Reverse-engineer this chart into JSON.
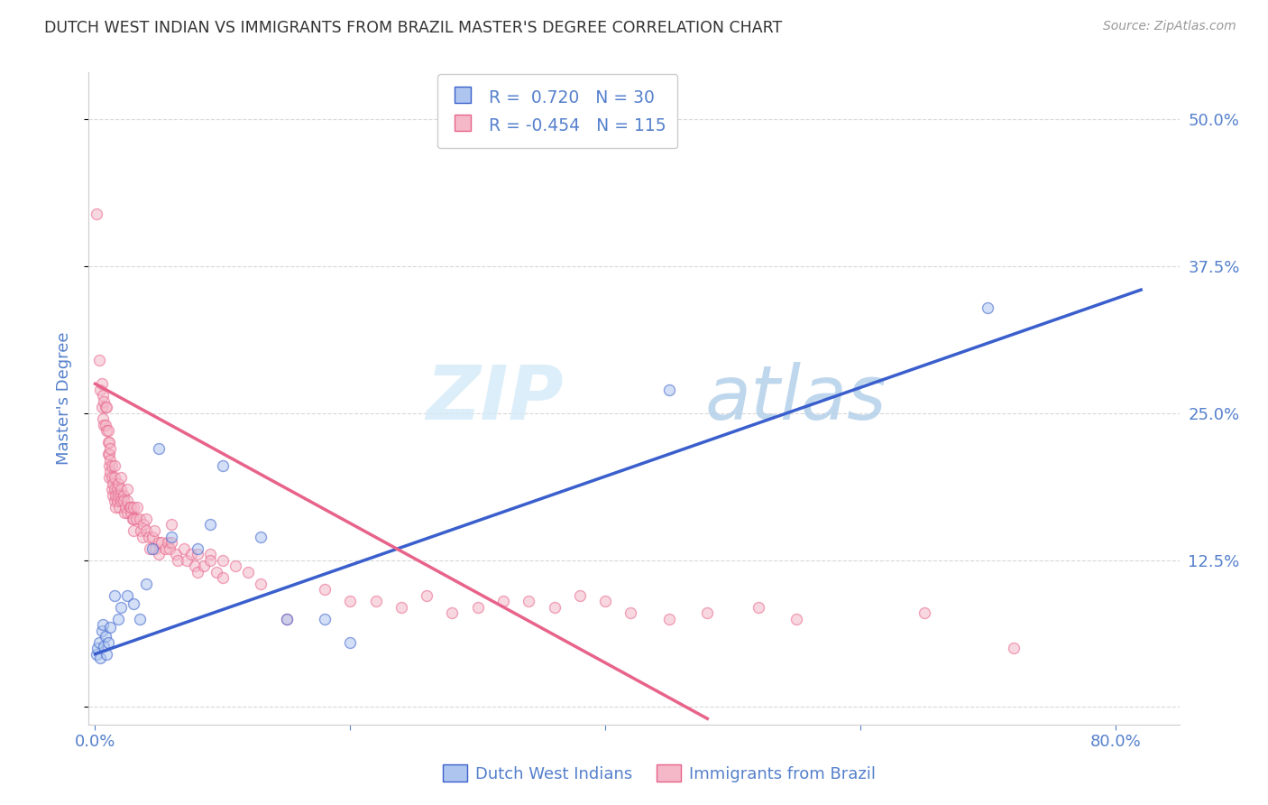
{
  "title": "DUTCH WEST INDIAN VS IMMIGRANTS FROM BRAZIL MASTER'S DEGREE CORRELATION CHART",
  "source": "Source: ZipAtlas.com",
  "ylabel_label": "Master's Degree",
  "x_ticks": [
    0.0,
    20.0,
    40.0,
    60.0,
    80.0
  ],
  "x_tick_labels": [
    "0.0%",
    "",
    "",
    "",
    "80.0%"
  ],
  "y_ticks": [
    0.0,
    12.5,
    25.0,
    37.5,
    50.0
  ],
  "y_tick_labels": [
    "",
    "12.5%",
    "25.0%",
    "37.5%",
    "50.0%"
  ],
  "xlim": [
    -0.5,
    85.0
  ],
  "ylim": [
    -1.5,
    54.0
  ],
  "blue_color": "#aec6ef",
  "pink_color": "#f4b8c8",
  "blue_line_color": "#3a5fcd",
  "pink_line_color": "#e8638a",
  "R_blue": 0.72,
  "N_blue": 30,
  "R_pink": -0.454,
  "N_pink": 115,
  "legend_label_blue": "Dutch West Indians",
  "legend_label_pink": "Immigrants from Brazil",
  "watermark_zip": "ZIP",
  "watermark_atlas": "atlas",
  "blue_points": [
    [
      0.1,
      4.5
    ],
    [
      0.2,
      5.0
    ],
    [
      0.3,
      5.5
    ],
    [
      0.4,
      4.2
    ],
    [
      0.5,
      6.5
    ],
    [
      0.6,
      7.0
    ],
    [
      0.7,
      5.2
    ],
    [
      0.8,
      6.0
    ],
    [
      0.9,
      4.5
    ],
    [
      1.0,
      5.5
    ],
    [
      1.2,
      6.8
    ],
    [
      1.5,
      9.5
    ],
    [
      1.8,
      7.5
    ],
    [
      2.0,
      8.5
    ],
    [
      2.5,
      9.5
    ],
    [
      3.0,
      8.8
    ],
    [
      3.5,
      7.5
    ],
    [
      4.0,
      10.5
    ],
    [
      4.5,
      13.5
    ],
    [
      5.0,
      22.0
    ],
    [
      6.0,
      14.5
    ],
    [
      8.0,
      13.5
    ],
    [
      9.0,
      15.5
    ],
    [
      10.0,
      20.5
    ],
    [
      13.0,
      14.5
    ],
    [
      15.0,
      7.5
    ],
    [
      18.0,
      7.5
    ],
    [
      20.0,
      5.5
    ],
    [
      45.0,
      27.0
    ],
    [
      70.0,
      34.0
    ]
  ],
  "pink_points": [
    [
      0.1,
      42.0
    ],
    [
      0.3,
      29.5
    ],
    [
      0.4,
      27.0
    ],
    [
      0.5,
      27.5
    ],
    [
      0.5,
      25.5
    ],
    [
      0.6,
      24.5
    ],
    [
      0.6,
      26.5
    ],
    [
      0.7,
      24.0
    ],
    [
      0.7,
      26.0
    ],
    [
      0.8,
      25.5
    ],
    [
      0.8,
      24.0
    ],
    [
      0.9,
      23.5
    ],
    [
      0.9,
      25.5
    ],
    [
      1.0,
      23.5
    ],
    [
      1.0,
      22.5
    ],
    [
      1.0,
      21.5
    ],
    [
      1.1,
      22.5
    ],
    [
      1.1,
      21.5
    ],
    [
      1.1,
      20.5
    ],
    [
      1.1,
      19.5
    ],
    [
      1.2,
      22.0
    ],
    [
      1.2,
      21.0
    ],
    [
      1.2,
      20.0
    ],
    [
      1.3,
      19.5
    ],
    [
      1.3,
      20.5
    ],
    [
      1.3,
      18.5
    ],
    [
      1.4,
      19.0
    ],
    [
      1.4,
      18.0
    ],
    [
      1.5,
      20.5
    ],
    [
      1.5,
      19.5
    ],
    [
      1.5,
      18.5
    ],
    [
      1.5,
      17.5
    ],
    [
      1.6,
      18.0
    ],
    [
      1.6,
      17.0
    ],
    [
      1.7,
      18.5
    ],
    [
      1.7,
      17.5
    ],
    [
      1.8,
      19.0
    ],
    [
      1.8,
      18.0
    ],
    [
      1.9,
      17.0
    ],
    [
      2.0,
      18.0
    ],
    [
      2.0,
      19.5
    ],
    [
      2.0,
      18.5
    ],
    [
      2.0,
      17.5
    ],
    [
      2.2,
      18.0
    ],
    [
      2.2,
      17.5
    ],
    [
      2.3,
      16.5
    ],
    [
      2.4,
      17.0
    ],
    [
      2.5,
      18.5
    ],
    [
      2.5,
      17.5
    ],
    [
      2.5,
      16.5
    ],
    [
      2.7,
      17.0
    ],
    [
      2.8,
      16.5
    ],
    [
      2.8,
      17.0
    ],
    [
      2.9,
      16.0
    ],
    [
      3.0,
      17.0
    ],
    [
      3.0,
      16.0
    ],
    [
      3.0,
      15.0
    ],
    [
      3.2,
      16.0
    ],
    [
      3.3,
      17.0
    ],
    [
      3.5,
      16.0
    ],
    [
      3.6,
      15.0
    ],
    [
      3.7,
      14.5
    ],
    [
      3.8,
      15.5
    ],
    [
      4.0,
      16.0
    ],
    [
      4.0,
      15.0
    ],
    [
      4.2,
      14.5
    ],
    [
      4.3,
      13.5
    ],
    [
      4.5,
      14.5
    ],
    [
      4.6,
      15.0
    ],
    [
      4.7,
      13.5
    ],
    [
      5.0,
      14.0
    ],
    [
      5.0,
      13.0
    ],
    [
      5.2,
      14.0
    ],
    [
      5.5,
      13.5
    ],
    [
      5.7,
      14.0
    ],
    [
      5.8,
      13.5
    ],
    [
      6.0,
      15.5
    ],
    [
      6.0,
      14.0
    ],
    [
      6.3,
      13.0
    ],
    [
      6.5,
      12.5
    ],
    [
      7.0,
      13.5
    ],
    [
      7.2,
      12.5
    ],
    [
      7.5,
      13.0
    ],
    [
      7.8,
      12.0
    ],
    [
      8.0,
      13.0
    ],
    [
      8.0,
      11.5
    ],
    [
      8.5,
      12.0
    ],
    [
      9.0,
      13.0
    ],
    [
      9.0,
      12.5
    ],
    [
      9.5,
      11.5
    ],
    [
      10.0,
      12.5
    ],
    [
      10.0,
      11.0
    ],
    [
      11.0,
      12.0
    ],
    [
      12.0,
      11.5
    ],
    [
      13.0,
      10.5
    ],
    [
      15.0,
      7.5
    ],
    [
      18.0,
      10.0
    ],
    [
      20.0,
      9.0
    ],
    [
      22.0,
      9.0
    ],
    [
      24.0,
      8.5
    ],
    [
      26.0,
      9.5
    ],
    [
      28.0,
      8.0
    ],
    [
      30.0,
      8.5
    ],
    [
      32.0,
      9.0
    ],
    [
      34.0,
      9.0
    ],
    [
      36.0,
      8.5
    ],
    [
      38.0,
      9.5
    ],
    [
      40.0,
      9.0
    ],
    [
      42.0,
      8.0
    ],
    [
      45.0,
      7.5
    ],
    [
      48.0,
      8.0
    ],
    [
      52.0,
      8.5
    ],
    [
      55.0,
      7.5
    ],
    [
      65.0,
      8.0
    ],
    [
      72.0,
      5.0
    ]
  ],
  "blue_line_x": [
    0.0,
    82.0
  ],
  "blue_line_y_start": 4.5,
  "blue_line_y_end": 35.5,
  "pink_line_x": [
    0.0,
    48.0
  ],
  "pink_line_y_start": 27.5,
  "pink_line_y_end": -1.0,
  "grid_color": "#d8d8d8",
  "tick_color": "#5580cc",
  "title_color": "#333333",
  "source_color": "#999999",
  "bg_color": "#ffffff",
  "marker_size": 75,
  "marker_alpha": 0.55,
  "marker_linewidth": 1.0,
  "line_width": 2.5
}
